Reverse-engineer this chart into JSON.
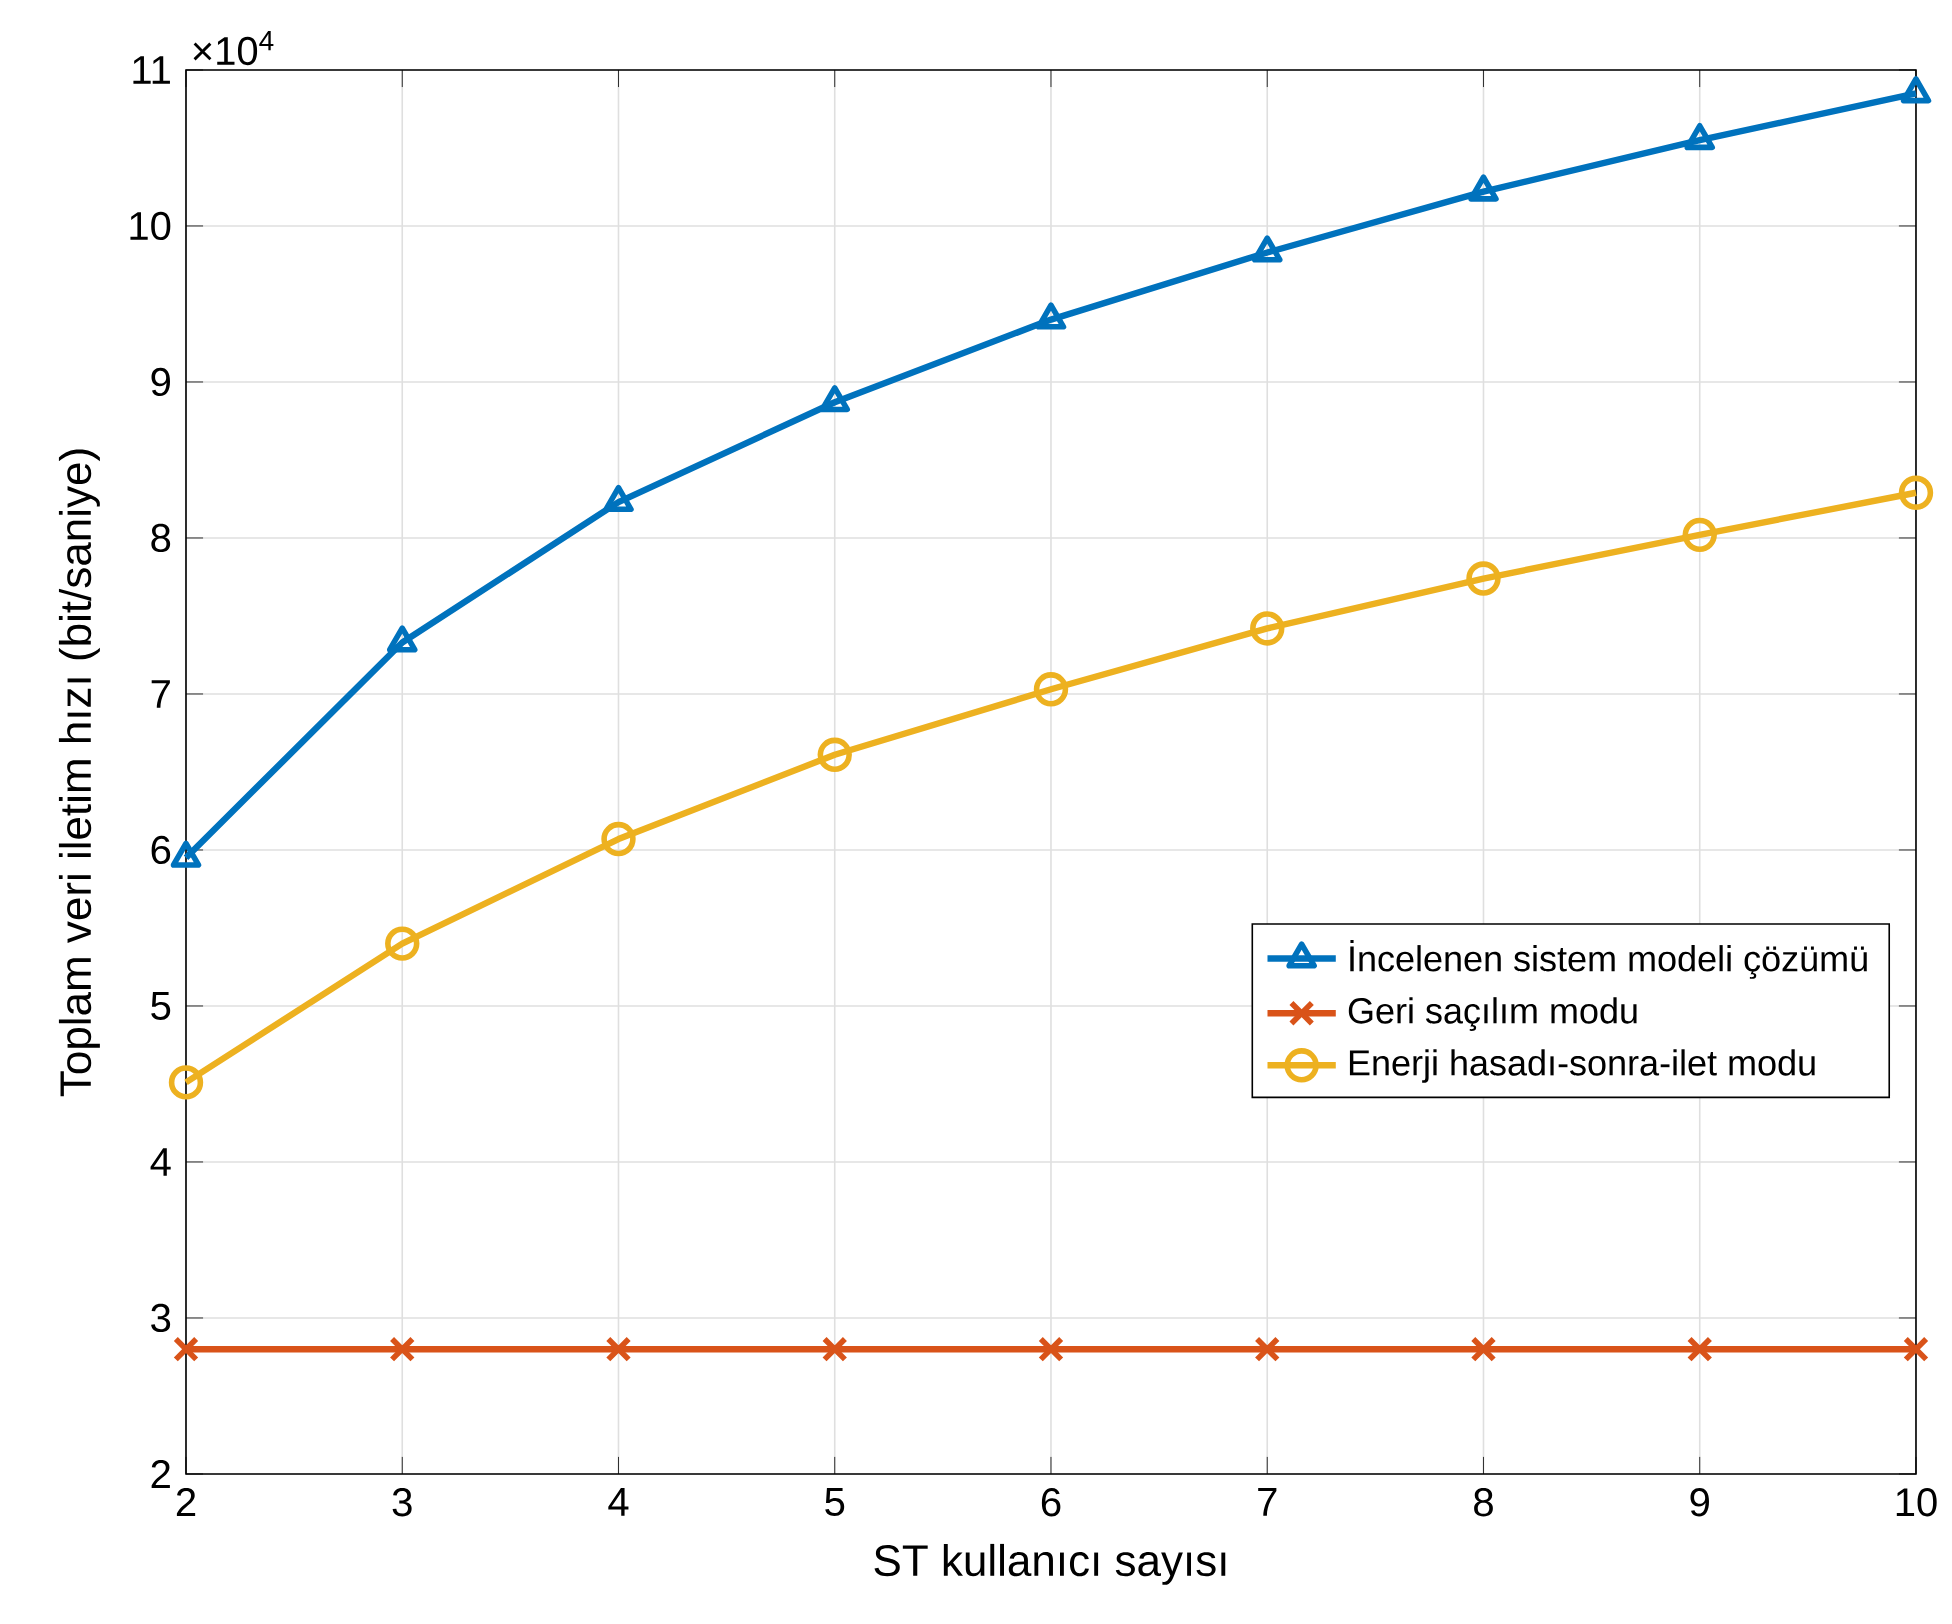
{
  "chart_data": {
    "type": "line",
    "xlabel": "ST kullanıcı sayısı",
    "ylabel": "Toplam veri iletim hızı (bit/saniye)",
    "annotations": [
      "×10$^{4}$"
    ],
    "x": [
      2,
      3,
      4,
      5,
      6,
      7,
      8,
      9,
      10
    ],
    "series": [
      {
        "name": "İncelenen sistem modeli çözümü",
        "color": "#0072bd",
        "marker": "triangle",
        "values": [
          5.95,
          7.33,
          8.23,
          8.87,
          9.4,
          9.83,
          10.22,
          10.55,
          10.85
        ]
      },
      {
        "name": "Geri saçılım modu",
        "color": "#d95319",
        "marker": "cross",
        "values": [
          2.8,
          2.8,
          2.8,
          2.8,
          2.8,
          2.8,
          2.8,
          2.8,
          2.8
        ]
      },
      {
        "name": "Enerji hasadı-sonra-ilet modu",
        "color": "#edb120",
        "marker": "circle",
        "values": [
          4.51,
          5.4,
          6.07,
          6.61,
          7.03,
          7.42,
          7.74,
          8.02,
          8.29
        ]
      }
    ],
    "xlim": [
      2,
      10
    ],
    "ylim": [
      2,
      11
    ],
    "xticks": [
      2,
      3,
      4,
      5,
      6,
      7,
      8,
      9,
      10
    ],
    "yticks": [
      2,
      3,
      4,
      5,
      6,
      7,
      8,
      9,
      10,
      11
    ],
    "grid": true,
    "legend": "right",
    "line_style": "solid"
  }
}
